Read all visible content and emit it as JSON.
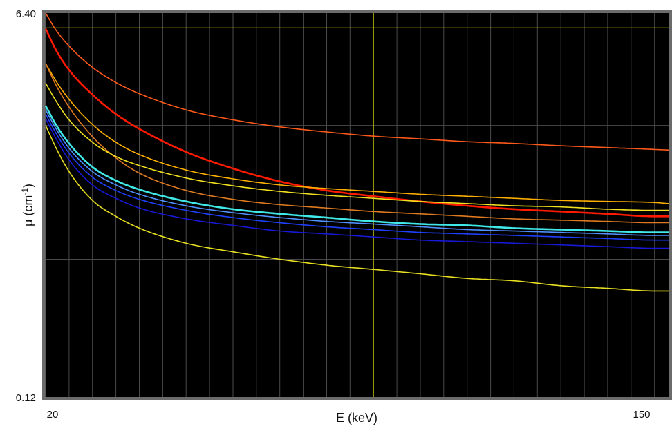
{
  "chart_data": {
    "type": "line",
    "title": "",
    "xlabel": "E (keV)",
    "ylabel_main": "μ (cm",
    "ylabel_sup": "-1",
    "ylabel_close": ")",
    "x_tick_labels": [
      "20",
      "150"
    ],
    "y_tick_labels": [
      "0.12",
      "6.40"
    ],
    "xlim": [
      20,
      153
    ],
    "ylim": [
      0.12,
      6.4
    ],
    "grid": true,
    "legend": "none",
    "background": "#000000",
    "frame_color": "#6b6b6b",
    "cursor": {
      "x": 90,
      "y": 5.5,
      "color": "#c8c800"
    },
    "x": [
      20,
      22,
      25,
      30,
      35,
      40,
      50,
      60,
      70,
      80,
      90,
      100,
      110,
      120,
      130,
      140,
      150,
      153
    ],
    "series": [
      {
        "color": "#ff5a1a",
        "values": [
          6.4,
          5.45,
          4.55,
          3.65,
          3.12,
          2.78,
          2.35,
          2.12,
          1.97,
          1.87,
          1.79,
          1.74,
          1.69,
          1.66,
          1.62,
          1.59,
          1.56,
          1.55
        ]
      },
      {
        "color": "#ff1a00",
        "values": [
          5.45,
          4.45,
          3.55,
          2.75,
          2.25,
          1.93,
          1.52,
          1.28,
          1.12,
          1.02,
          0.96,
          0.91,
          0.87,
          0.84,
          0.82,
          0.8,
          0.78,
          0.78
        ]
      },
      {
        "color": "#ffb000",
        "values": [
          3.8,
          3.22,
          2.62,
          2.02,
          1.68,
          1.48,
          1.26,
          1.15,
          1.08,
          1.04,
          1.01,
          0.98,
          0.96,
          0.94,
          0.92,
          0.91,
          0.9,
          0.89
        ]
      },
      {
        "color": "#e07a20",
        "values": [
          3.8,
          3.1,
          2.42,
          1.78,
          1.43,
          1.22,
          1.02,
          0.93,
          0.88,
          0.85,
          0.82,
          0.8,
          0.78,
          0.76,
          0.75,
          0.74,
          0.73,
          0.73
        ]
      },
      {
        "color": "#f0e020",
        "values": [
          3.1,
          2.62,
          2.12,
          1.68,
          1.45,
          1.32,
          1.16,
          1.07,
          1.01,
          0.97,
          0.94,
          0.91,
          0.89,
          0.87,
          0.86,
          0.84,
          0.83,
          0.83
        ]
      },
      {
        "color": "#40e8e8",
        "values": [
          2.45,
          2.05,
          1.66,
          1.3,
          1.13,
          1.03,
          0.91,
          0.84,
          0.8,
          0.77,
          0.74,
          0.72,
          0.71,
          0.69,
          0.68,
          0.67,
          0.66,
          0.66
        ]
      },
      {
        "color": "#5090ff",
        "values": [
          2.35,
          1.97,
          1.58,
          1.24,
          1.08,
          0.98,
          0.87,
          0.81,
          0.77,
          0.74,
          0.72,
          0.7,
          0.68,
          0.67,
          0.66,
          0.65,
          0.64,
          0.64
        ]
      },
      {
        "color": "#2040ff",
        "values": [
          2.25,
          1.88,
          1.5,
          1.17,
          1.02,
          0.93,
          0.83,
          0.77,
          0.73,
          0.7,
          0.68,
          0.66,
          0.65,
          0.64,
          0.63,
          0.62,
          0.61,
          0.61
        ]
      },
      {
        "color": "#1818d8",
        "values": [
          2.15,
          1.78,
          1.4,
          1.08,
          0.94,
          0.85,
          0.76,
          0.71,
          0.67,
          0.65,
          0.63,
          0.61,
          0.6,
          0.59,
          0.58,
          0.57,
          0.56,
          0.56
        ]
      },
      {
        "color": "#e8e020",
        "values": [
          2.0,
          1.62,
          1.24,
          0.92,
          0.78,
          0.69,
          0.59,
          0.54,
          0.5,
          0.47,
          0.45,
          0.43,
          0.41,
          0.4,
          0.38,
          0.37,
          0.36,
          0.36
        ]
      }
    ]
  }
}
